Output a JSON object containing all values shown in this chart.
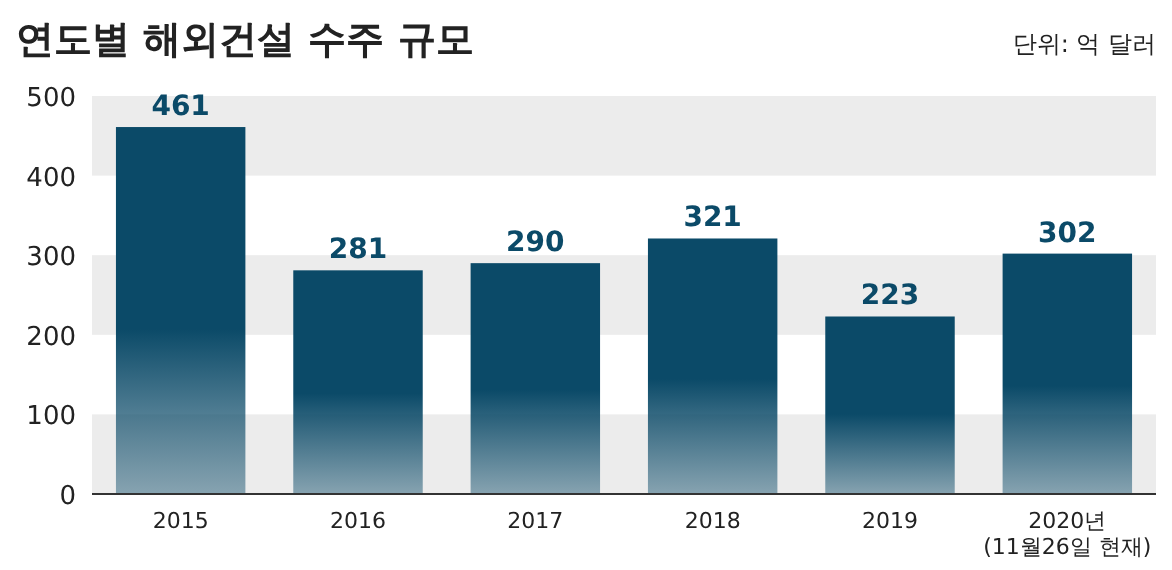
{
  "chart_data": {
    "type": "bar",
    "title": "연도별 해외건설 수주 규모",
    "annotations": [
      "단위: 억 달러"
    ],
    "categories": [
      "2015",
      "2016",
      "2017",
      "2018",
      "2019",
      "2020년\n(11월26일 현재)"
    ],
    "values": [
      461,
      281,
      290,
      321,
      223,
      302
    ],
    "color": "#0b4a68",
    "ylim": [
      0,
      500
    ],
    "yticks": [
      0,
      100,
      200,
      300,
      400,
      500
    ],
    "data_labels": true,
    "bands": [
      {
        "axis": "y",
        "from": 0,
        "to": 100,
        "color": "#ececec"
      },
      {
        "axis": "y",
        "from": 200,
        "to": 300,
        "color": "#ececec"
      },
      {
        "axis": "y",
        "from": 400,
        "to": 500,
        "color": "#ececec"
      }
    ]
  }
}
